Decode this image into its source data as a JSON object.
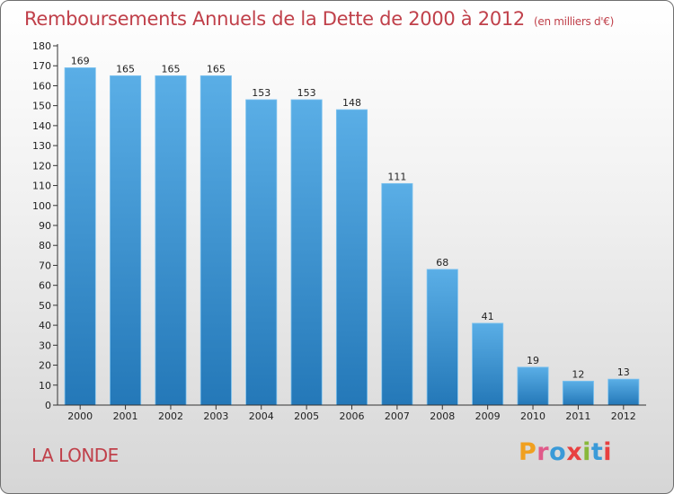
{
  "title": "Remboursements Annuels de la Dette de 2000 à 2012",
  "title_unit": "(en milliers d'€)",
  "city": "LA LONDE",
  "logo_text": "Proxiti",
  "colors": {
    "title": "#c0404a",
    "bar_light": "#5aaee6",
    "bar_dark": "#2478b8",
    "axis": "#333333"
  },
  "chart_data": {
    "type": "bar",
    "title": "Remboursements Annuels de la Dette de 2000 à 2012",
    "xlabel": "",
    "ylabel": "",
    "categories": [
      "2000",
      "2001",
      "2002",
      "2003",
      "2004",
      "2005",
      "2006",
      "2007",
      "2008",
      "2009",
      "2010",
      "2011",
      "2012"
    ],
    "values": [
      169,
      165,
      165,
      165,
      153,
      153,
      148,
      111,
      68,
      41,
      19,
      12,
      13
    ],
    "ylim": [
      0,
      180
    ],
    "yticks": [
      0,
      10,
      20,
      30,
      40,
      50,
      60,
      70,
      80,
      90,
      100,
      110,
      120,
      130,
      140,
      150,
      160,
      170,
      180
    ],
    "grid": false,
    "legend": "none"
  }
}
